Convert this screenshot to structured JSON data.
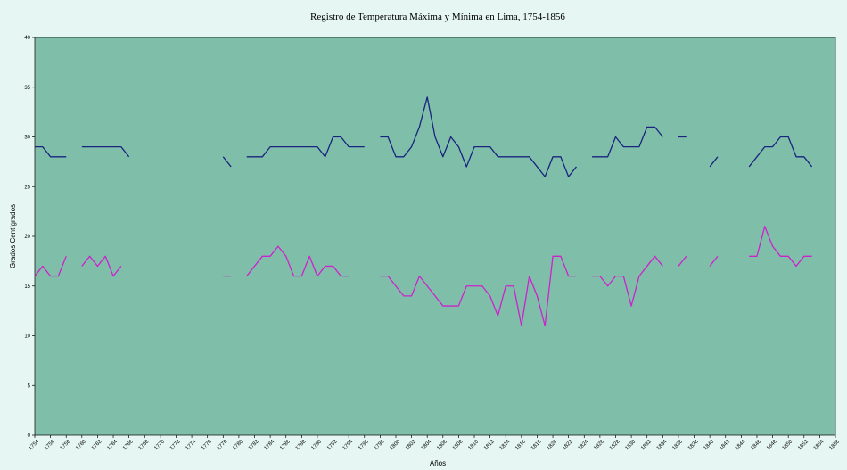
{
  "chart_data": {
    "type": "line",
    "title": "Registro de Temperatura Máxima y Mínima en Lima, 1754-1856",
    "xlabel": "Años",
    "ylabel": "Grados Centígrados",
    "xlim": [
      1754,
      1856
    ],
    "ylim": [
      0,
      40
    ],
    "yticks": [
      "0",
      "5",
      "10",
      "15",
      "20",
      "25",
      "30",
      "35",
      "40"
    ],
    "xticks": [
      "1754",
      "1756",
      "1758",
      "1760",
      "1762",
      "1764",
      "1766",
      "1768",
      "1770",
      "1772",
      "1774",
      "1776",
      "1778",
      "1780",
      "1782",
      "1784",
      "1786",
      "1788",
      "1790",
      "1792",
      "1794",
      "1796",
      "1798",
      "1800",
      "1802",
      "1804",
      "1806",
      "1808",
      "1810",
      "1812",
      "1814",
      "1816",
      "1818",
      "1820",
      "1822",
      "1824",
      "1826",
      "1828",
      "1830",
      "1832",
      "1834",
      "1836",
      "1838",
      "1840",
      "1842",
      "1844",
      "1846",
      "1848",
      "1850",
      "1852",
      "1854",
      "1856"
    ],
    "grid": false,
    "legend": "none",
    "colors": {
      "plot_bg": "#7fbfaa",
      "page_bg": "#e6f7f3",
      "max": "#1a237e",
      "min": "#cc22cc"
    },
    "series": [
      {
        "key": "max",
        "segments": [
          [
            [
              1754,
              29
            ],
            [
              1755,
              29
            ],
            [
              1756,
              28
            ],
            [
              1757,
              28
            ],
            [
              1758,
              28
            ]
          ],
          [
            [
              1760,
              29
            ],
            [
              1761,
              29
            ],
            [
              1762,
              29
            ],
            [
              1763,
              29
            ],
            [
              1764,
              29
            ],
            [
              1765,
              29
            ],
            [
              1766,
              28
            ]
          ],
          [
            [
              1778,
              28
            ],
            [
              1779,
              27
            ]
          ],
          [
            [
              1781,
              28
            ],
            [
              1782,
              28
            ],
            [
              1783,
              28
            ],
            [
              1784,
              29
            ],
            [
              1785,
              29
            ],
            [
              1786,
              29
            ],
            [
              1787,
              29
            ],
            [
              1788,
              29
            ],
            [
              1789,
              29
            ],
            [
              1790,
              29
            ],
            [
              1791,
              28
            ],
            [
              1792,
              30
            ],
            [
              1793,
              30
            ],
            [
              1794,
              29
            ],
            [
              1795,
              29
            ],
            [
              1796,
              29
            ]
          ],
          [
            [
              1798,
              30
            ],
            [
              1799,
              30
            ],
            [
              1800,
              28
            ],
            [
              1801,
              28
            ],
            [
              1802,
              29
            ],
            [
              1803,
              31
            ],
            [
              1804,
              34
            ],
            [
              1805,
              30
            ],
            [
              1806,
              28
            ],
            [
              1807,
              30
            ],
            [
              1808,
              29
            ],
            [
              1809,
              27
            ],
            [
              1810,
              29
            ],
            [
              1811,
              29
            ],
            [
              1812,
              29
            ],
            [
              1813,
              28
            ],
            [
              1814,
              28
            ],
            [
              1815,
              28
            ],
            [
              1816,
              28
            ],
            [
              1817,
              28
            ],
            [
              1818,
              27
            ],
            [
              1819,
              26
            ],
            [
              1820,
              28
            ],
            [
              1821,
              28
            ],
            [
              1822,
              26
            ],
            [
              1823,
              27
            ]
          ],
          [
            [
              1825,
              28
            ],
            [
              1826,
              28
            ],
            [
              1827,
              28
            ],
            [
              1828,
              30
            ],
            [
              1829,
              29
            ],
            [
              1830,
              29
            ],
            [
              1831,
              29
            ],
            [
              1832,
              31
            ],
            [
              1833,
              31
            ],
            [
              1834,
              30
            ]
          ],
          [
            [
              1836,
              30
            ],
            [
              1837,
              30
            ]
          ],
          [
            [
              1840,
              27
            ],
            [
              1841,
              28
            ]
          ],
          [
            [
              1845,
              27
            ],
            [
              1846,
              28
            ],
            [
              1847,
              29
            ],
            [
              1848,
              29
            ],
            [
              1849,
              30
            ],
            [
              1850,
              30
            ],
            [
              1851,
              28
            ],
            [
              1852,
              28
            ],
            [
              1853,
              27
            ]
          ]
        ]
      },
      {
        "key": "min",
        "segments": [
          [
            [
              1754,
              16
            ],
            [
              1755,
              17
            ],
            [
              1756,
              16
            ],
            [
              1757,
              16
            ],
            [
              1758,
              18
            ]
          ],
          [
            [
              1760,
              17
            ],
            [
              1761,
              18
            ],
            [
              1762,
              17
            ],
            [
              1763,
              18
            ],
            [
              1764,
              16
            ],
            [
              1765,
              17
            ]
          ],
          [
            [
              1778,
              16
            ],
            [
              1779,
              16
            ]
          ],
          [
            [
              1781,
              16
            ],
            [
              1782,
              17
            ],
            [
              1783,
              18
            ],
            [
              1784,
              18
            ],
            [
              1785,
              19
            ],
            [
              1786,
              18
            ],
            [
              1787,
              16
            ],
            [
              1788,
              16
            ],
            [
              1789,
              18
            ],
            [
              1790,
              16
            ],
            [
              1791,
              17
            ],
            [
              1792,
              17
            ],
            [
              1793,
              16
            ],
            [
              1794,
              16
            ]
          ],
          [
            [
              1798,
              16
            ],
            [
              1799,
              16
            ],
            [
              1800,
              15
            ],
            [
              1801,
              14
            ],
            [
              1802,
              14
            ],
            [
              1803,
              16
            ],
            [
              1804,
              15
            ],
            [
              1805,
              14
            ],
            [
              1806,
              13
            ],
            [
              1807,
              13
            ],
            [
              1808,
              13
            ],
            [
              1809,
              15
            ],
            [
              1810,
              15
            ],
            [
              1811,
              15
            ],
            [
              1812,
              14
            ],
            [
              1813,
              12
            ],
            [
              1814,
              15
            ],
            [
              1815,
              15
            ],
            [
              1816,
              11
            ],
            [
              1817,
              16
            ],
            [
              1818,
              14
            ],
            [
              1819,
              11
            ],
            [
              1820,
              18
            ],
            [
              1821,
              18
            ],
            [
              1822,
              16
            ],
            [
              1823,
              16
            ]
          ],
          [
            [
              1825,
              16
            ],
            [
              1826,
              16
            ],
            [
              1827,
              15
            ],
            [
              1828,
              16
            ],
            [
              1829,
              16
            ],
            [
              1830,
              13
            ],
            [
              1831,
              16
            ],
            [
              1832,
              17
            ],
            [
              1833,
              18
            ],
            [
              1834,
              17
            ]
          ],
          [
            [
              1836,
              17
            ],
            [
              1837,
              18
            ]
          ],
          [
            [
              1840,
              17
            ],
            [
              1841,
              18
            ]
          ],
          [
            [
              1845,
              18
            ],
            [
              1846,
              18
            ],
            [
              1847,
              21
            ],
            [
              1848,
              19
            ],
            [
              1849,
              18
            ],
            [
              1850,
              18
            ],
            [
              1851,
              17
            ],
            [
              1852,
              18
            ],
            [
              1853,
              18
            ]
          ]
        ]
      }
    ]
  }
}
